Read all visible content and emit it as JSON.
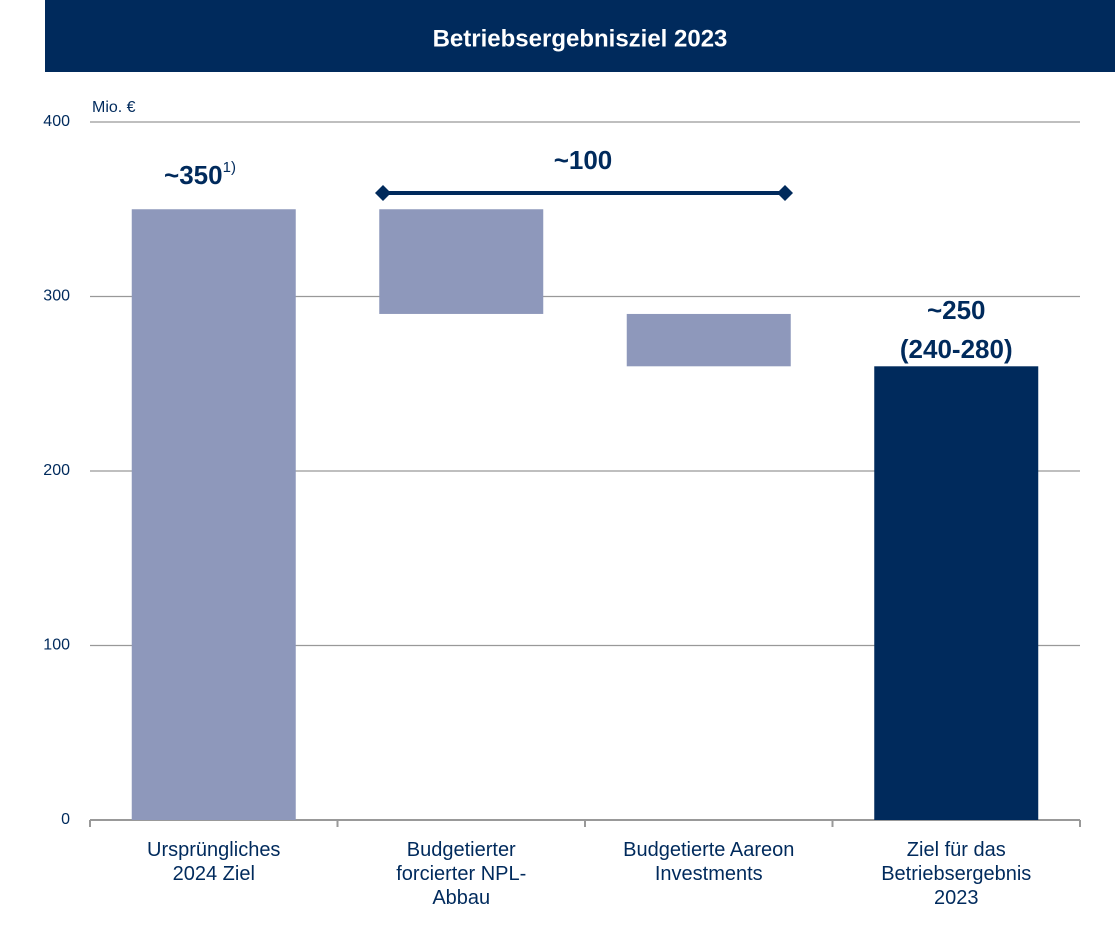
{
  "chart_data": {
    "type": "waterfall",
    "title": "Betriebsergebnisziel 2023",
    "y_unit": "Mio. €",
    "categories": [
      "Ursprüngliches\n2024 Ziel",
      "Budgetierter\nforcierter NPL-\nAbbau",
      "Budgetierte Aareon\nInvestments",
      "Ziel für das\nBetriebsergebnis\n2023"
    ],
    "values": [
      350,
      -60,
      -30,
      260
    ],
    "totals": [
      true,
      false,
      false,
      true
    ],
    "colors": [
      "#8e98bb",
      "#8e98bb",
      "#8e98bb",
      "#002a5c"
    ],
    "ylim": [
      0,
      400
    ],
    "yticks": [
      0,
      100,
      200,
      300,
      400
    ],
    "grid": true,
    "annotations": {
      "start_label": "~350",
      "footnote_mark": "1)",
      "bracket_label": "~100",
      "end_label": "~250",
      "end_range": "(240-280)"
    }
  }
}
